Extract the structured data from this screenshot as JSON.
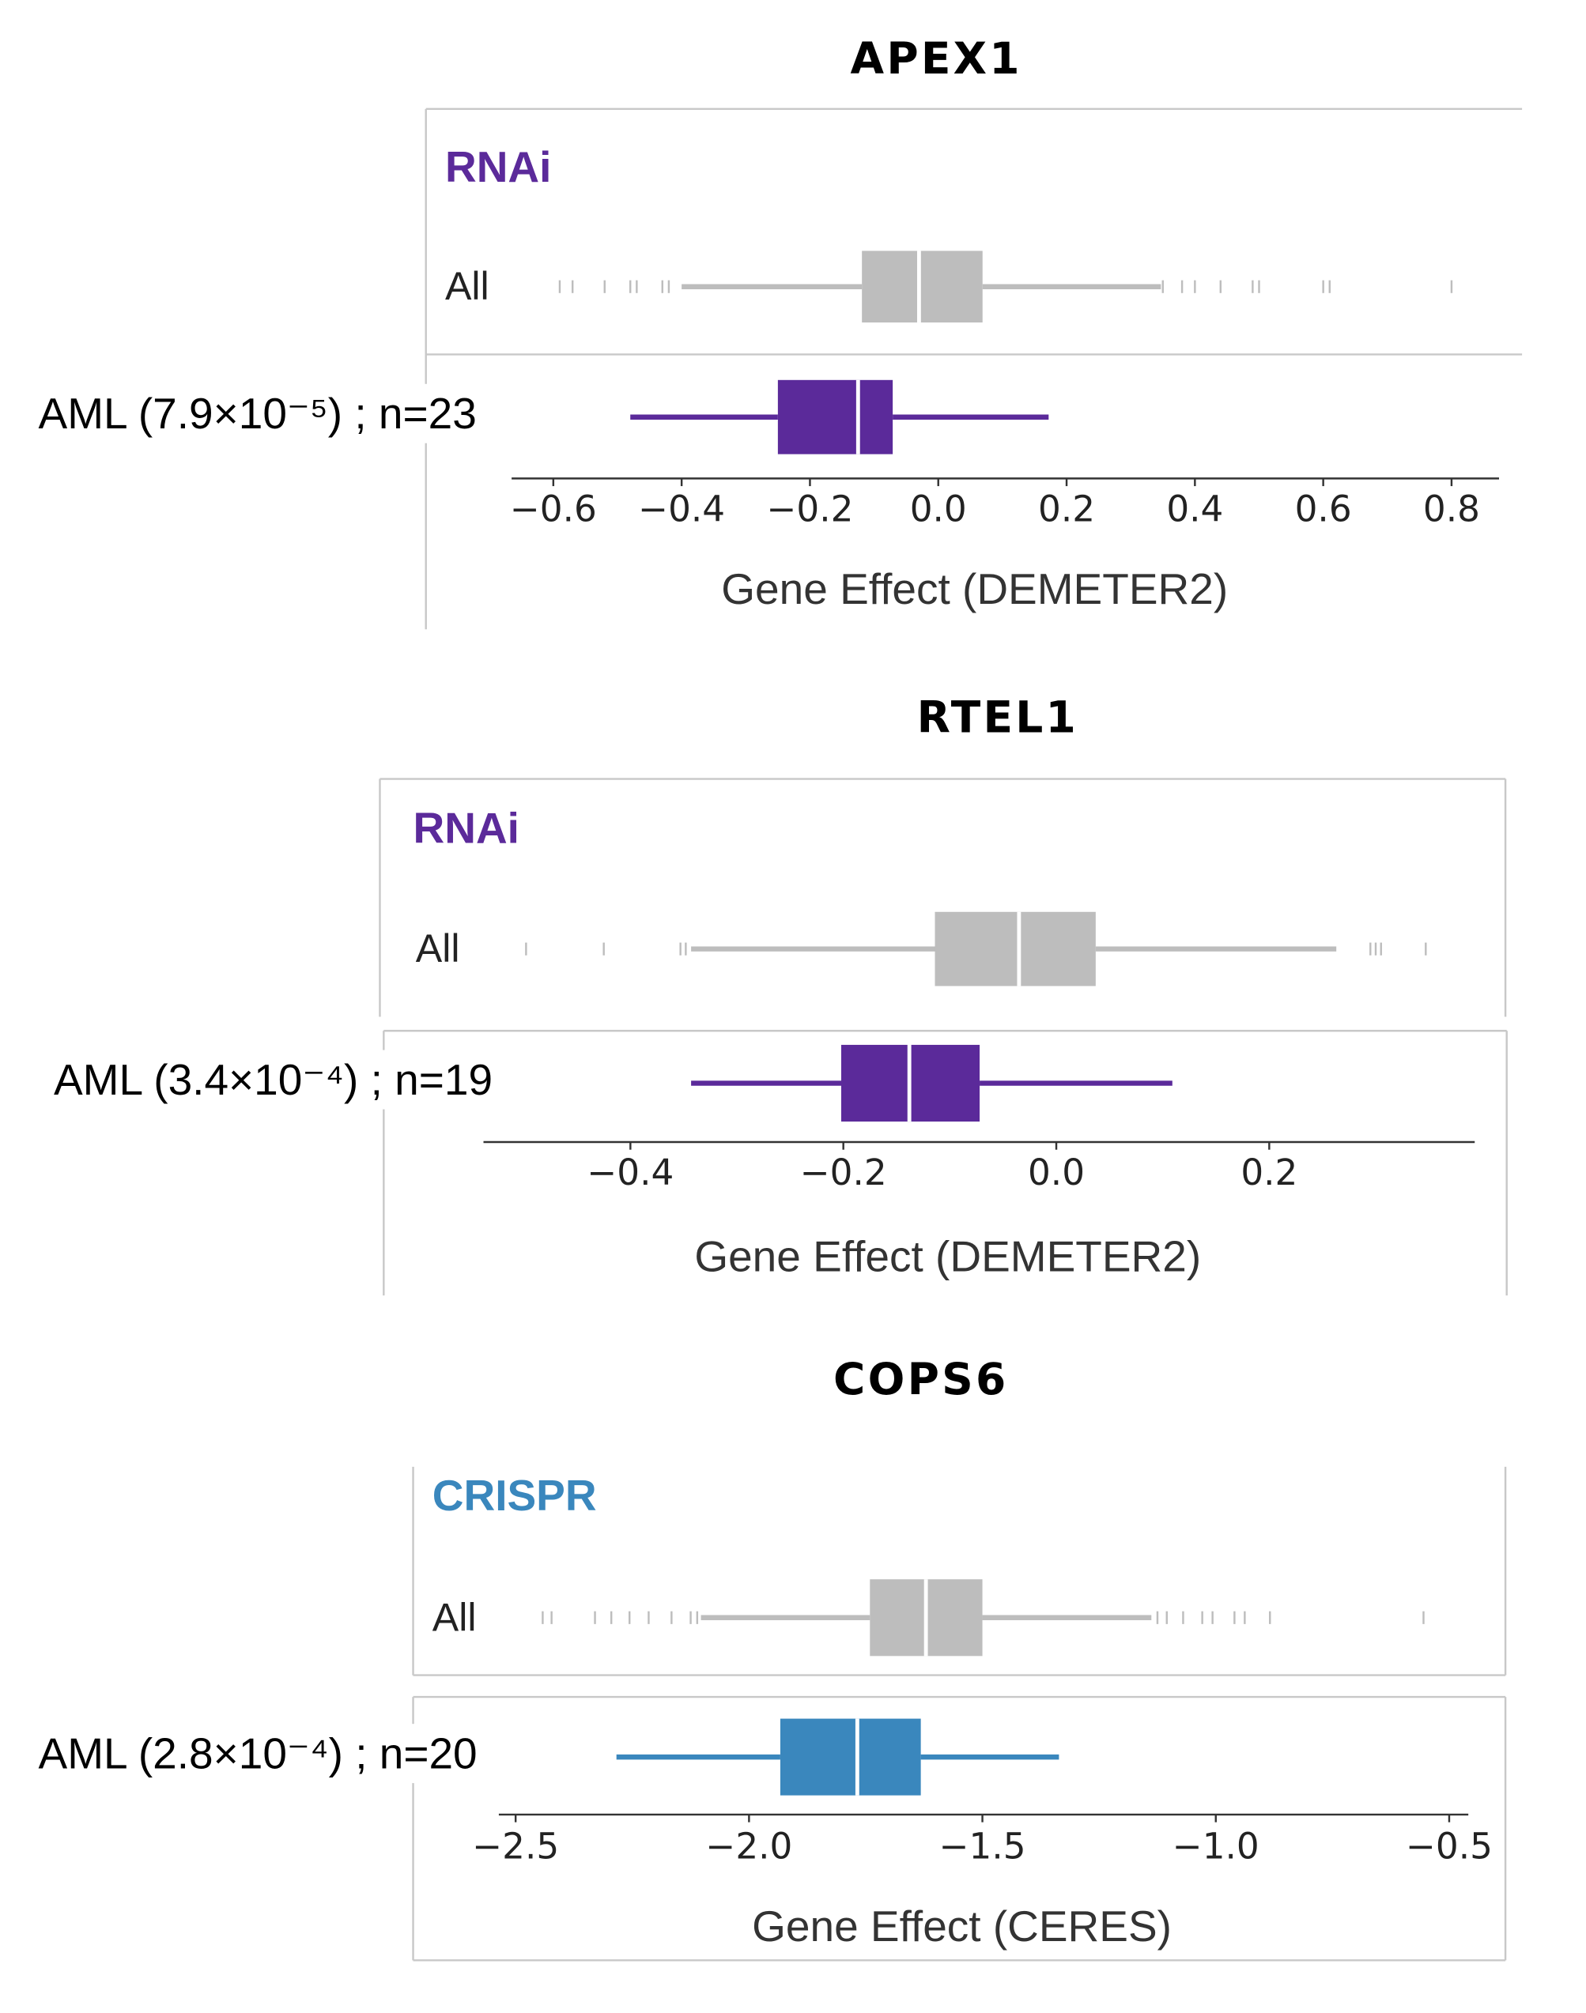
{
  "chart_data": [
    {
      "type": "box",
      "title": "APEX1",
      "subtitle": "RNAi",
      "xlabel": "Gene Effect (DEMETER2)",
      "xlim": [
        -0.665,
        0.874
      ],
      "xticks": [
        {
          "value": -0.6,
          "label": "−0.6"
        },
        {
          "value": -0.4,
          "label": "−0.4"
        },
        {
          "value": -0.2,
          "label": "−0.2"
        },
        {
          "value": 0.0,
          "label": "0.0"
        },
        0.2,
        0.4,
        0.6,
        0.8
      ],
      "boxes": [
        {
          "name": "All",
          "color": "#bdbdbd",
          "whislo": -0.4,
          "q1": -0.119,
          "med": -0.03,
          "q3": 0.069,
          "whishi": 0.347,
          "outliers": [
            -0.59,
            -0.57,
            -0.52,
            -0.48,
            -0.47,
            -0.43,
            -0.42,
            0.35,
            0.38,
            0.4,
            0.44,
            0.49,
            0.5,
            0.6,
            0.61,
            0.8
          ]
        },
        {
          "name": "AML (7.9×10⁻⁵) ; n=23",
          "color": "#5b2a9a",
          "whislo": -0.48,
          "q1": -0.25,
          "med": -0.125,
          "q3": -0.071,
          "whishi": 0.172,
          "outliers": []
        }
      ]
    },
    {
      "type": "box",
      "title": "RTEL1",
      "subtitle": "RNAi",
      "xlabel": "Gene Effect (DEMETER2)",
      "xlim": [
        -0.538,
        0.393
      ],
      "xticks": [
        {
          "value": -0.4,
          "label": "−0.4"
        },
        {
          "value": -0.2,
          "label": "−0.2"
        },
        {
          "value": 0.0,
          "label": "0.0"
        },
        0.2
      ],
      "boxes": [
        {
          "name": "All",
          "color": "#bdbdbd",
          "whislo": -0.343,
          "q1": -0.114,
          "med": -0.035,
          "q3": 0.037,
          "whishi": 0.263,
          "outliers": [
            -0.498,
            -0.425,
            -0.353,
            -0.348,
            0.295,
            0.3,
            0.305,
            0.347
          ]
        },
        {
          "name": "AML (3.4×10⁻⁴) ; n=19",
          "color": "#5b2a9a",
          "whislo": -0.343,
          "q1": -0.202,
          "med": -0.138,
          "q3": -0.072,
          "whishi": 0.109,
          "outliers": []
        }
      ]
    },
    {
      "type": "box",
      "title": "COPS6",
      "subtitle": "CRISPR",
      "xlabel": "Gene Effect (CERES)",
      "xlim": [
        -2.536,
        -0.459
      ],
      "xticks": [
        {
          "value": -2.5,
          "label": "−2.5"
        },
        {
          "value": -2.0,
          "label": "−2.0"
        },
        {
          "value": -1.5,
          "label": "−1.5"
        },
        {
          "value": -1.0,
          "label": "−1.0"
        },
        {
          "value": -0.5,
          "label": "−0.5"
        }
      ],
      "boxes": [
        {
          "name": "All",
          "color": "#bdbdbd",
          "whislo": -2.103,
          "q1": -1.741,
          "med": -1.621,
          "q3": -1.5,
          "whishi": -1.138,
          "outliers": [
            -2.442,
            -2.423,
            -2.33,
            -2.295,
            -2.256,
            -2.215,
            -2.166,
            -2.125,
            -2.111,
            -1.125,
            -1.105,
            -1.07,
            -1.029,
            -1.007,
            -0.96,
            -0.938,
            -0.884,
            -0.555
          ]
        },
        {
          "name": "AML (2.8×10⁻⁴) ; n=20",
          "color": "#3a87bd",
          "whislo": -2.284,
          "q1": -1.933,
          "med": -1.768,
          "q3": -1.632,
          "whishi": -1.336,
          "outliers": []
        }
      ]
    }
  ]
}
